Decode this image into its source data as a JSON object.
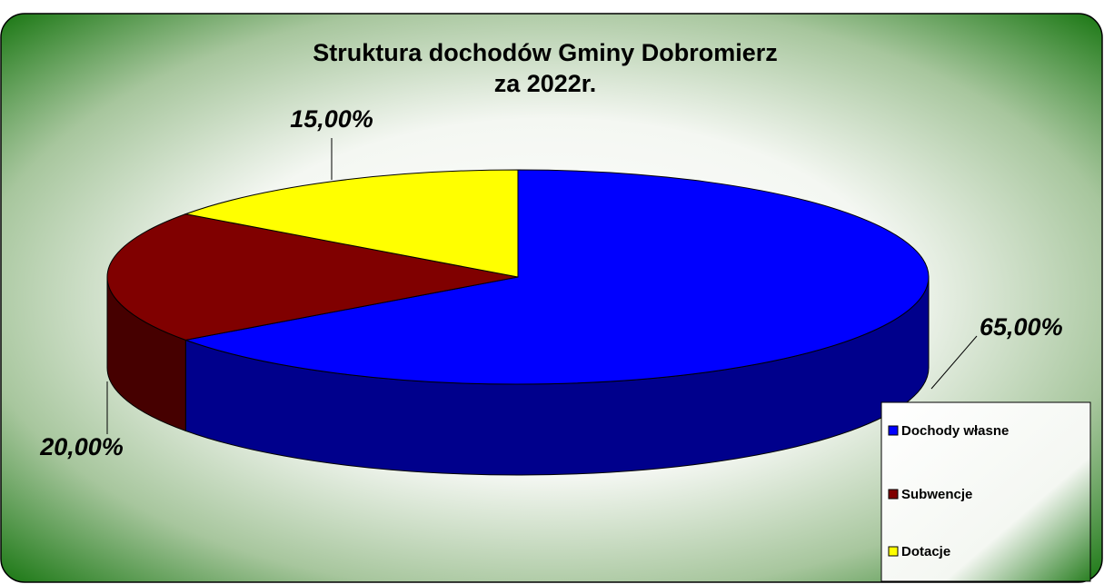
{
  "chart_data": {
    "type": "pie3d",
    "title": [
      "Struktura dochodów Gminy Dobromierz",
      "za 2022r."
    ],
    "categories": [
      "Dochody własne",
      "Subwencje",
      "Dotacje"
    ],
    "values": [
      65,
      20,
      15
    ],
    "value_labels": [
      "65,00%",
      "20,00%",
      "15,00%"
    ],
    "colors": [
      "#0000ff",
      "#800000",
      "#ffff00"
    ],
    "legend": "bottom-right"
  }
}
